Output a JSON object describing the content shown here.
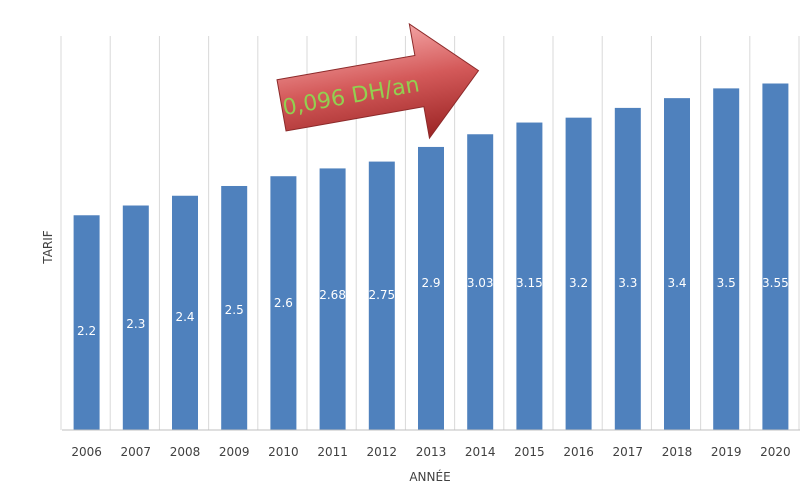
{
  "chart_data": {
    "type": "bar",
    "title": "",
    "xlabel": "ANNÉE",
    "ylabel": "TARIF",
    "categories": [
      "2006",
      "2007",
      "2008",
      "2009",
      "2010",
      "2011",
      "2012",
      "2013",
      "2014",
      "2015",
      "2016",
      "2017",
      "2018",
      "2019",
      "2020"
    ],
    "values": [
      2.2,
      2.3,
      2.4,
      2.5,
      2.6,
      2.68,
      2.75,
      2.9,
      3.03,
      3.15,
      3.2,
      3.3,
      3.4,
      3.5,
      3.55
    ],
    "data_labels": [
      "2.2",
      "2.3",
      "2.4",
      "2.5",
      "2.6",
      "2.68",
      "2.75",
      "2.9",
      "3.03",
      "3.15",
      "3.2",
      "3.3",
      "3.4",
      "3.5",
      "3.55"
    ],
    "ylim": [
      0,
      3.55
    ],
    "grid": "vertical",
    "legend": "none",
    "annotation": {
      "text": "0,096 DH/an",
      "shape": "arrow"
    },
    "colors": {
      "bar": "#4F81BD",
      "bar_label": "#ffffff",
      "gridline": "#d9d9d9",
      "axis_text": "#404040",
      "arrow_fill_light": "#e07b7b",
      "arrow_fill_dark": "#a52a2a",
      "annotation_text": "#92d050"
    }
  }
}
